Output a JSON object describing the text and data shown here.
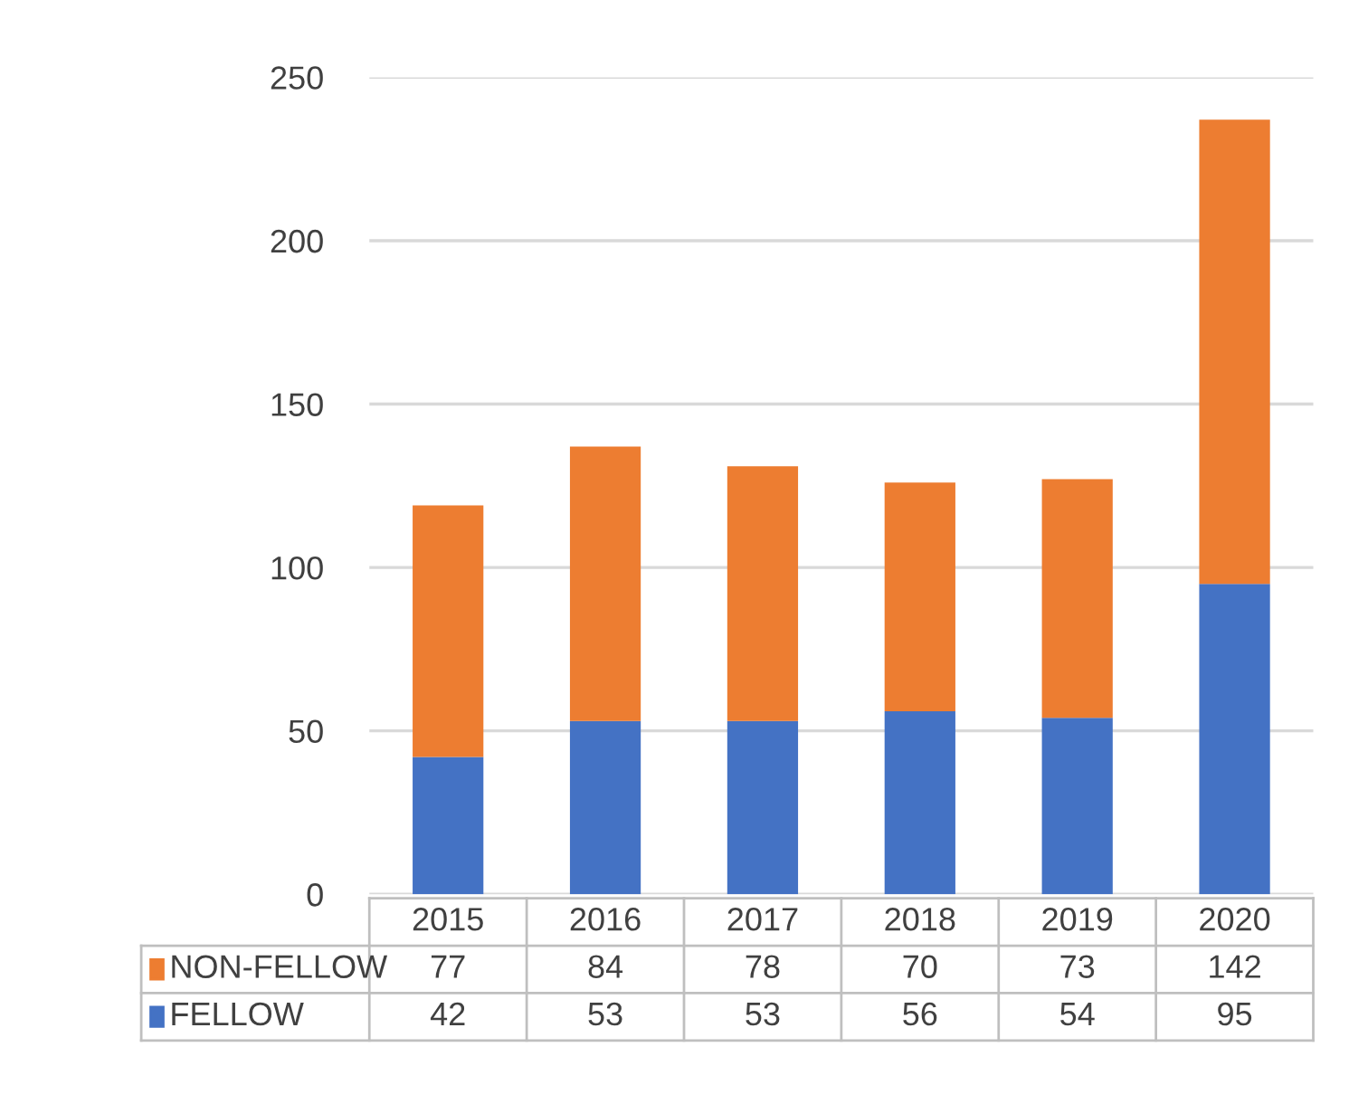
{
  "chart_data": {
    "type": "bar",
    "stacked": true,
    "categories": [
      "2015",
      "2016",
      "2017",
      "2018",
      "2019",
      "2020"
    ],
    "series": [
      {
        "name": "FELLOW",
        "color": "#4472c4",
        "values": [
          42,
          53,
          53,
          56,
          54,
          95
        ]
      },
      {
        "name": "NON-FELLOW",
        "color": "#ed7d31",
        "values": [
          77,
          84,
          78,
          70,
          73,
          142
        ]
      }
    ],
    "ylim": [
      0,
      250
    ],
    "yticks": [
      0,
      50,
      100,
      150,
      200,
      250
    ],
    "grid": "y",
    "legend": "bottom",
    "data_labels": true
  }
}
